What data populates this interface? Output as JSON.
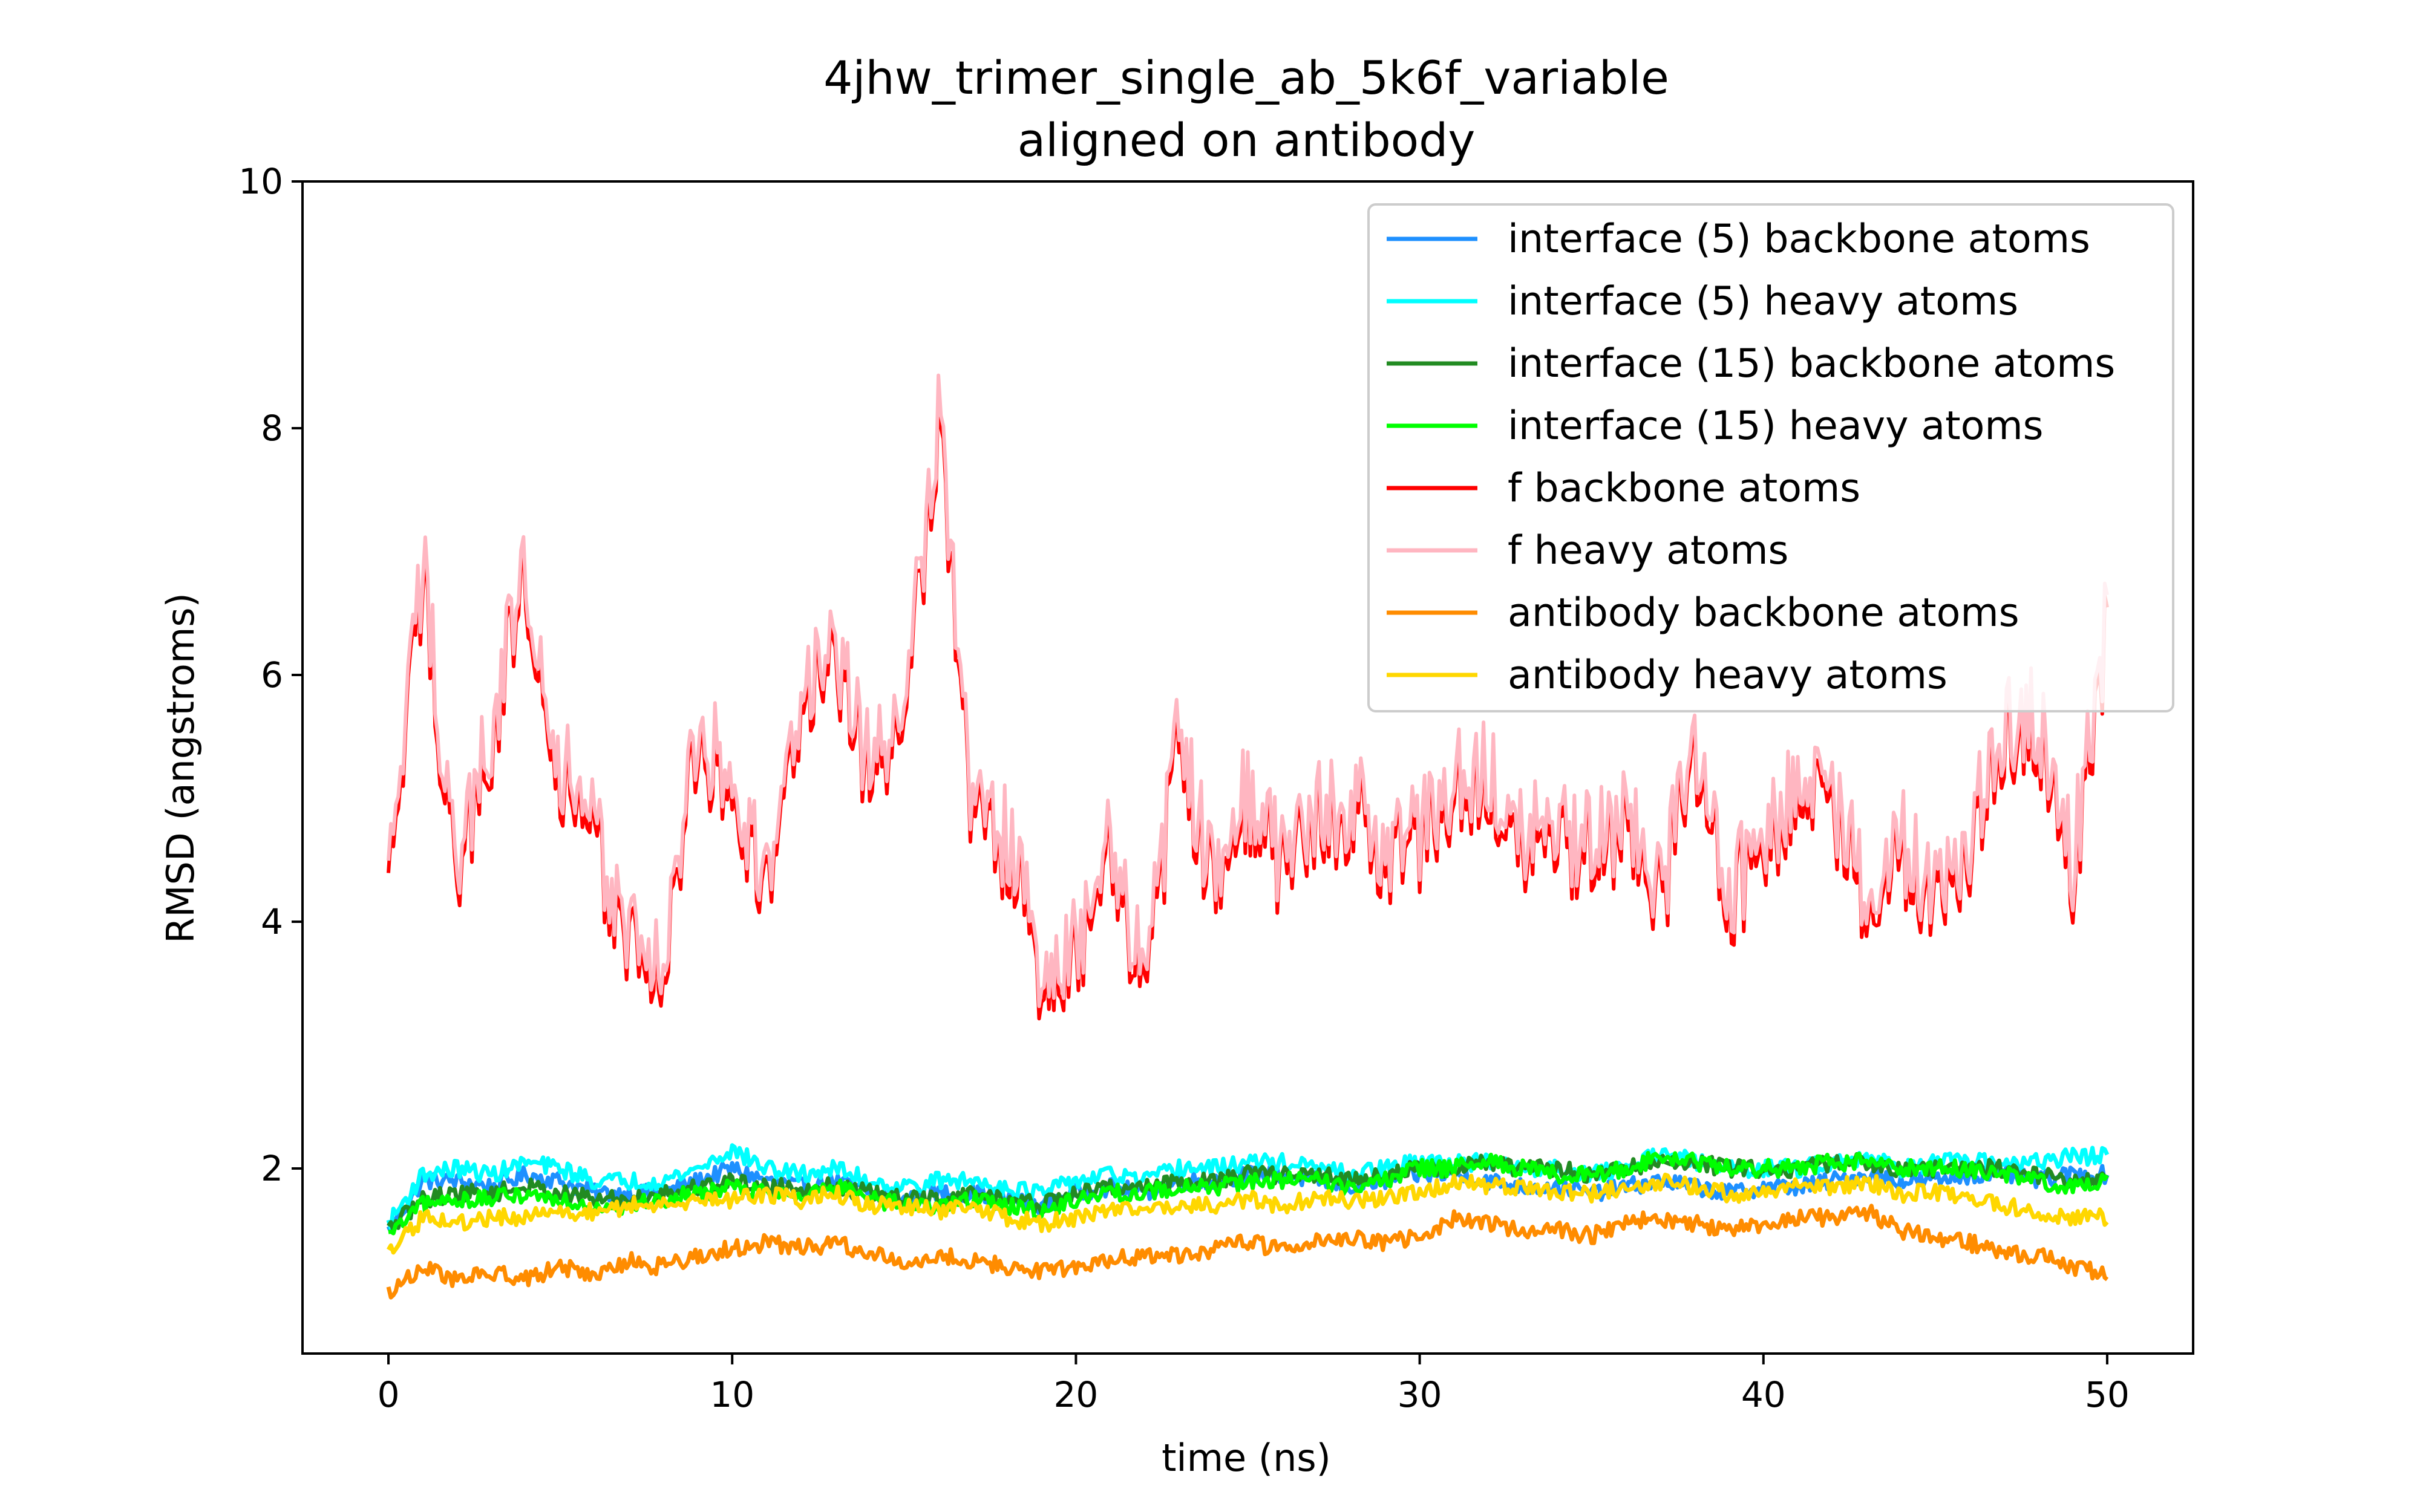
{
  "chart_data": {
    "type": "line",
    "title": "4jhw_trimer_single_ab_5k6f_variable",
    "subtitle": "aligned on antibody",
    "xlabel": "time (ns)",
    "ylabel": "RMSD (angstroms)",
    "xlim": [
      -2.5,
      52.5
    ],
    "ylim": [
      0.5,
      10
    ],
    "xticks": [
      0,
      10,
      20,
      30,
      40,
      50
    ],
    "yticks": [
      2,
      4,
      6,
      8,
      10
    ],
    "grid": false,
    "legend_position": "upper right",
    "x": [
      0,
      1,
      2,
      3,
      4,
      5,
      6,
      7,
      8,
      9,
      10,
      11,
      12,
      13,
      14,
      15,
      16,
      17,
      18,
      19,
      20,
      21,
      22,
      23,
      24,
      25,
      26,
      27,
      28,
      29,
      30,
      31,
      32,
      33,
      34,
      35,
      36,
      37,
      38,
      39,
      40,
      41,
      42,
      43,
      44,
      45,
      46,
      47,
      48,
      49,
      50
    ],
    "series": [
      {
        "name": "interface (5) backbone atoms",
        "color": "#1e90ff",
        "values": [
          1.5,
          1.9,
          1.9,
          1.85,
          1.95,
          1.9,
          1.8,
          1.8,
          1.8,
          1.9,
          2.0,
          1.9,
          1.85,
          1.9,
          1.8,
          1.75,
          1.8,
          1.8,
          1.75,
          1.7,
          1.8,
          1.85,
          1.8,
          1.9,
          1.9,
          1.95,
          1.95,
          1.9,
          1.85,
          1.9,
          1.95,
          1.95,
          1.9,
          1.85,
          1.85,
          1.8,
          1.85,
          1.9,
          1.85,
          1.8,
          1.85,
          1.85,
          1.9,
          1.95,
          1.9,
          1.9,
          1.95,
          1.95,
          1.9,
          1.95,
          1.95
        ]
      },
      {
        "name": "interface (5) heavy atoms",
        "color": "#00ffff",
        "values": [
          1.55,
          1.95,
          2.0,
          1.95,
          2.05,
          2.0,
          1.9,
          1.9,
          1.9,
          2.0,
          2.15,
          2.0,
          1.95,
          2.0,
          1.9,
          1.85,
          1.9,
          1.9,
          1.85,
          1.8,
          1.9,
          1.95,
          1.9,
          2.0,
          2.0,
          2.05,
          2.05,
          2.0,
          1.95,
          2.0,
          2.05,
          2.05,
          2.05,
          2.0,
          2.0,
          1.95,
          2.0,
          2.15,
          2.05,
          2.0,
          2.0,
          2.0,
          2.05,
          2.1,
          2.0,
          2.05,
          2.05,
          2.05,
          2.05,
          2.1,
          2.1
        ]
      },
      {
        "name": "interface (15) backbone atoms",
        "color": "#228b22",
        "values": [
          1.5,
          1.75,
          1.8,
          1.8,
          1.85,
          1.8,
          1.75,
          1.75,
          1.8,
          1.85,
          1.9,
          1.85,
          1.85,
          1.85,
          1.8,
          1.75,
          1.75,
          1.8,
          1.75,
          1.7,
          1.8,
          1.85,
          1.85,
          1.9,
          1.9,
          1.95,
          1.95,
          1.95,
          1.9,
          1.95,
          2.0,
          2.0,
          2.05,
          2.0,
          2.0,
          1.95,
          2.0,
          2.05,
          2.05,
          2.0,
          2.0,
          2.0,
          2.05,
          2.05,
          2.0,
          2.0,
          2.0,
          2.0,
          1.95,
          1.9,
          1.9
        ]
      },
      {
        "name": "interface (15) heavy atoms",
        "color": "#00ff00",
        "values": [
          1.45,
          1.7,
          1.75,
          1.75,
          1.8,
          1.75,
          1.7,
          1.7,
          1.75,
          1.8,
          1.85,
          1.8,
          1.8,
          1.85,
          1.75,
          1.7,
          1.7,
          1.75,
          1.7,
          1.65,
          1.75,
          1.8,
          1.8,
          1.85,
          1.85,
          1.9,
          1.9,
          1.9,
          1.85,
          1.9,
          2.0,
          2.0,
          2.05,
          2.0,
          1.95,
          1.95,
          2.0,
          2.1,
          2.05,
          2.0,
          2.0,
          2.0,
          2.05,
          2.05,
          2.0,
          2.0,
          2.0,
          1.95,
          1.9,
          1.85,
          1.9
        ]
      },
      {
        "name": "f backbone atoms",
        "color": "#ff0000",
        "values": [
          4.2,
          6.8,
          4.3,
          5.5,
          6.8,
          5.2,
          4.6,
          3.8,
          3.6,
          5.4,
          5.1,
          4.2,
          5.8,
          6.0,
          5.2,
          5.6,
          8.1,
          4.8,
          4.6,
          3.5,
          3.7,
          4.6,
          3.4,
          5.4,
          4.3,
          5.0,
          4.4,
          4.8,
          4.9,
          4.5,
          4.6,
          5.1,
          5.2,
          4.7,
          4.6,
          4.5,
          4.8,
          4.1,
          5.4,
          4.2,
          4.6,
          5.1,
          4.9,
          4.1,
          4.6,
          4.1,
          4.6,
          5.5,
          5.6,
          4.4,
          6.4
        ]
      },
      {
        "name": "f heavy atoms",
        "color": "#ffb6c1",
        "values": [
          4.3,
          6.9,
          4.4,
          5.6,
          6.9,
          5.3,
          4.7,
          3.9,
          3.7,
          5.5,
          5.2,
          4.3,
          5.9,
          6.1,
          5.3,
          5.7,
          8.2,
          4.9,
          4.7,
          3.6,
          3.8,
          4.7,
          3.5,
          5.5,
          4.4,
          5.1,
          4.5,
          4.9,
          5.0,
          4.6,
          4.7,
          5.2,
          5.3,
          4.8,
          4.7,
          4.6,
          4.9,
          4.2,
          5.5,
          4.3,
          4.7,
          5.2,
          5.0,
          4.2,
          4.7,
          4.2,
          4.7,
          5.6,
          5.7,
          4.5,
          6.5
        ]
      },
      {
        "name": "antibody backbone atoms",
        "color": "#ff8c00",
        "values": [
          1.0,
          1.2,
          1.1,
          1.15,
          1.1,
          1.2,
          1.15,
          1.25,
          1.2,
          1.3,
          1.35,
          1.4,
          1.35,
          1.4,
          1.3,
          1.25,
          1.3,
          1.25,
          1.2,
          1.15,
          1.2,
          1.25,
          1.3,
          1.3,
          1.35,
          1.4,
          1.35,
          1.4,
          1.45,
          1.4,
          1.45,
          1.6,
          1.55,
          1.5,
          1.5,
          1.45,
          1.55,
          1.6,
          1.55,
          1.5,
          1.55,
          1.6,
          1.6,
          1.65,
          1.5,
          1.45,
          1.4,
          1.3,
          1.3,
          1.2,
          1.15
        ]
      },
      {
        "name": "antibody heavy atoms",
        "color": "#ffd700",
        "values": [
          1.3,
          1.6,
          1.55,
          1.6,
          1.6,
          1.65,
          1.65,
          1.7,
          1.7,
          1.75,
          1.75,
          1.8,
          1.75,
          1.8,
          1.7,
          1.7,
          1.65,
          1.7,
          1.6,
          1.55,
          1.6,
          1.65,
          1.65,
          1.7,
          1.7,
          1.75,
          1.7,
          1.75,
          1.75,
          1.75,
          1.8,
          1.9,
          1.85,
          1.85,
          1.8,
          1.8,
          1.85,
          1.9,
          1.85,
          1.8,
          1.8,
          1.85,
          1.85,
          1.9,
          1.8,
          1.8,
          1.75,
          1.7,
          1.65,
          1.6,
          1.6
        ]
      }
    ]
  }
}
